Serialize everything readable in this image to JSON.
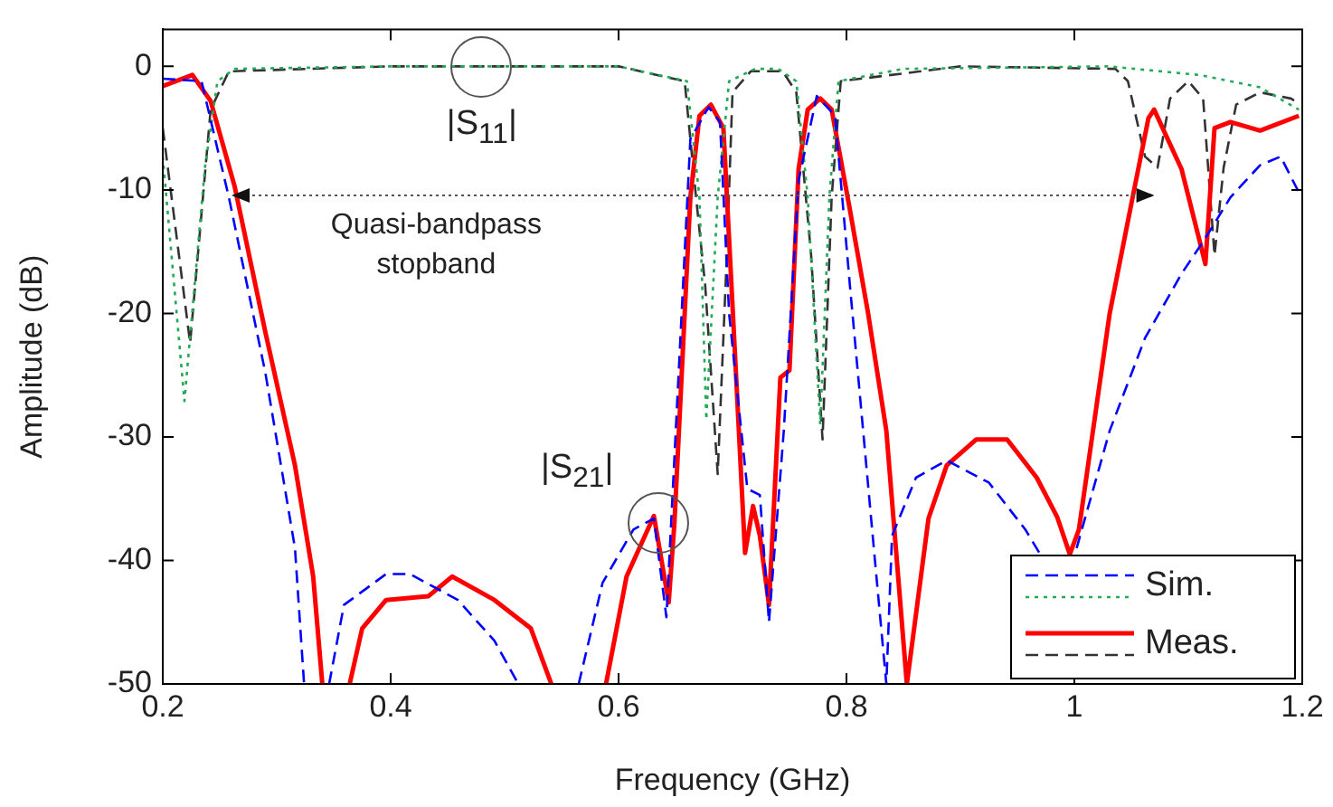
{
  "chart_data": {
    "type": "line",
    "xlabel": "Frequency (GHz)",
    "ylabel": "Amplitude (dB)",
    "xlim": [
      0.2,
      1.2
    ],
    "xticks": [
      0.2,
      0.4,
      0.6,
      0.8,
      1,
      1.2
    ],
    "ylim": [
      -50,
      3
    ],
    "yticks": [
      -50,
      -40,
      -30,
      -20,
      -10,
      0
    ],
    "grid": false,
    "legend": "bottom right",
    "marker": "none",
    "series": [
      {
        "name": "Sim.",
        "color": "#0000ff",
        "line_style": "dashed",
        "x": [
          0.2,
          0.234,
          0.258,
          0.29,
          0.316,
          0.324,
          null,
          0.346,
          0.359,
          0.396,
          0.417,
          0.459,
          0.491,
          0.512,
          null,
          0.565,
          0.586,
          0.613,
          0.631,
          0.642,
          0.663,
          0.679,
          0.689,
          0.697,
          0.713,
          0.724,
          0.732,
          0.745,
          0.758,
          0.774,
          0.79,
          0.803,
          0.824,
          0.835,
          0.84,
          0.861,
          0.888,
          0.925,
          0.957,
          0.97,
          null,
          1.002,
          1.031,
          1.062,
          1.094,
          1.115,
          1.137,
          1.163,
          1.181,
          1.197
        ],
        "values": [
          -1.0,
          -1.2,
          -10.6,
          -24.8,
          -39,
          -50,
          null,
          -50,
          -43.6,
          -41.1,
          -41.1,
          -43.2,
          -46.5,
          -50,
          null,
          -50,
          -41.8,
          -37.5,
          -36.6,
          -44.6,
          -5.9,
          -3.3,
          -4.5,
          -20,
          -34.2,
          -34.7,
          -45,
          -29.5,
          -9.2,
          -2.4,
          -4,
          -17.7,
          -39,
          -50,
          -38,
          -33.3,
          -31.9,
          -33.7,
          -37.5,
          -39.5,
          null,
          -39,
          -29.5,
          -22,
          -16.8,
          -13.9,
          -10.6,
          -8,
          -7.3,
          -10.2
        ]
      },
      {
        "color": "#22aa55",
        "line_style": "dotted",
        "x": [
          0.2,
          0.219,
          0.237,
          0.248,
          0.263,
          0.4,
          0.6,
          0.66,
          0.671,
          0.677,
          0.687,
          0.697,
          0.72,
          0.74,
          0.756,
          0.766,
          0.777,
          0.785,
          0.793,
          0.85,
          1.03,
          1.11,
          1.163,
          1.197
        ],
        "values": [
          -7.3,
          -27.1,
          -8.2,
          -1.2,
          -0.2,
          0,
          0,
          -1.2,
          -10.6,
          -28.6,
          -10.6,
          -1.2,
          -0.2,
          -0.2,
          -1.2,
          -10.6,
          -29,
          -10.6,
          -1.2,
          -0.2,
          0,
          -0.7,
          -1.7,
          -3.5
        ]
      },
      {
        "name": "Meas.",
        "color": "#ff0000",
        "line_style": "solid",
        "x": [
          0.2,
          0.226,
          0.242,
          0.263,
          0.29,
          0.316,
          0.332,
          0.34,
          null,
          0.364,
          0.375,
          0.396,
          0.433,
          0.454,
          0.491,
          0.523,
          0.541,
          null,
          0.589,
          0.607,
          0.631,
          0.644,
          0.649,
          0.663,
          0.671,
          0.681,
          0.692,
          0.703,
          0.711,
          0.718,
          0.724,
          0.732,
          0.742,
          0.75,
          0.758,
          0.766,
          0.777,
          0.787,
          0.803,
          0.819,
          0.835,
          0.853,
          0.872,
          0.888,
          0.914,
          0.941,
          0.967,
          0.985,
          0.996,
          1.004,
          1.031,
          1.052,
          1.065,
          1.07,
          1.094,
          1.115,
          1.123,
          1.137,
          1.163,
          1.197
        ],
        "values": [
          -1.6,
          -0.7,
          -2.8,
          -9.7,
          -21.5,
          -32.3,
          -41.3,
          -50,
          null,
          -50,
          -45.5,
          -43.2,
          -42.9,
          -41.3,
          -43.2,
          -45.5,
          -50,
          null,
          -50,
          -41.3,
          -36.4,
          -43.4,
          -37,
          -10.6,
          -4,
          -3.1,
          -5,
          -24.8,
          -39.4,
          -35.6,
          -38,
          -43.6,
          -25.2,
          -24.6,
          -8.3,
          -3.5,
          -2.6,
          -3.5,
          -11.6,
          -20,
          -29.5,
          -50,
          -36.6,
          -32.3,
          -30.2,
          -30.2,
          -33.3,
          -36.5,
          -39.5,
          -37.5,
          -20,
          -10.2,
          -4.2,
          -3.5,
          -8.3,
          -16,
          -5,
          -4.5,
          -5.2,
          -4
        ]
      },
      {
        "color": "#333333",
        "line_style": "dashed",
        "x": [
          0.2,
          0.224,
          0.242,
          0.258,
          0.4,
          0.6,
          0.658,
          0.668,
          0.676,
          0.687,
          0.695,
          0.7,
          0.716,
          0.744,
          0.756,
          0.769,
          0.779,
          0.787,
          0.795,
          0.9,
          1.036,
          1.047,
          1.062,
          1.073,
          1.084,
          1.1,
          1.113,
          1.123,
          1.131,
          1.142,
          1.163,
          1.19,
          1.197
        ],
        "values": [
          -5,
          -22.4,
          -3.5,
          -0.4,
          0,
          0,
          -1.2,
          -10.6,
          -17.7,
          -33,
          -15.3,
          -2.1,
          -0.4,
          -0.4,
          -2.1,
          -15.3,
          -30.2,
          -10.6,
          -1.2,
          0,
          -0.2,
          -1.2,
          -7.3,
          -8.2,
          -2.6,
          -1.2,
          -2.6,
          -15.3,
          -8.2,
          -3.1,
          -2.1,
          -2.6,
          -3
        ]
      }
    ],
    "annotations": [
      {
        "text": "|S$_{11}$|",
        "x": 0.48,
        "y": 0
      },
      {
        "text": "|S$_{21}$|",
        "x": 0.635,
        "y": -37
      },
      "Quasi-bandpass\nstopband"
    ]
  }
}
